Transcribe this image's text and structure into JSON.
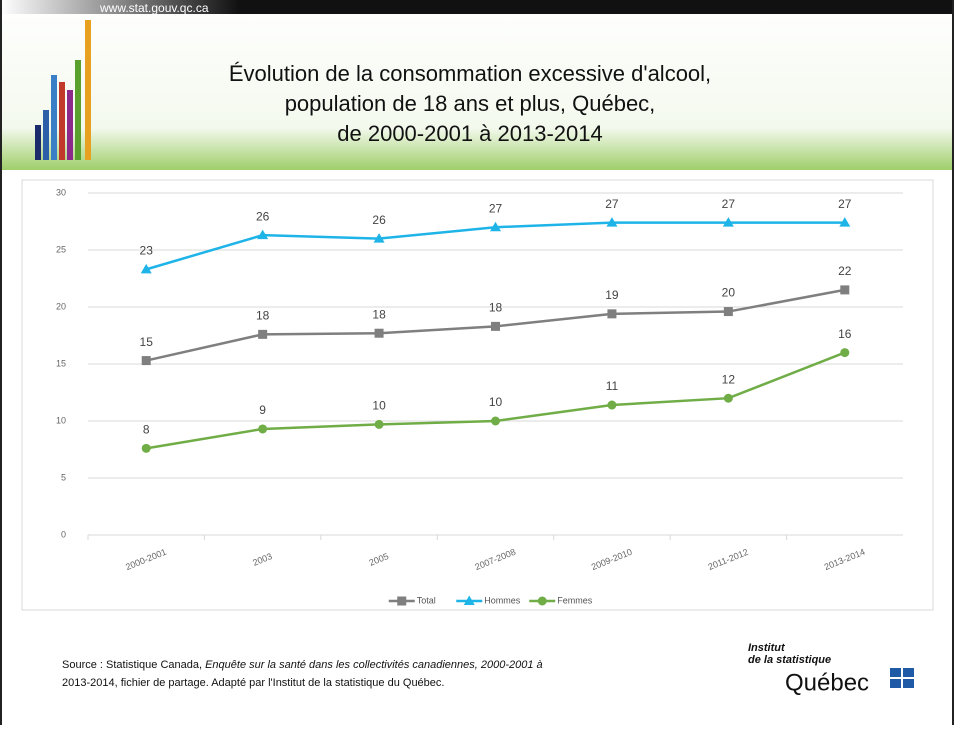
{
  "header": {
    "url": "www.stat.gouv.qc.ca",
    "title": [
      "Évolution de la consommation excessive d'alcool,",
      "population de 18 ans et plus, Québec,",
      "de 2000-2001 à 2013-2014"
    ]
  },
  "chart_data": {
    "type": "line",
    "categories": [
      "2000-2001",
      "2003",
      "2005",
      "2007-2008",
      "2009-2010",
      "2011-2012",
      "2013-2014"
    ],
    "series": [
      {
        "name": "Total",
        "color": "#7f7f7f",
        "marker": "square",
        "values": [
          15.3,
          17.6,
          17.7,
          18.3,
          19.4,
          19.6,
          21.5
        ],
        "value_labels": [
          "15",
          "18",
          "18",
          "18",
          "19",
          "20",
          "22"
        ]
      },
      {
        "name": "Hommes",
        "color": "#1fb4e8",
        "marker": "triangle",
        "values": [
          23.3,
          26.3,
          26.0,
          27.0,
          27.4,
          27.4,
          27.4
        ],
        "value_labels": [
          "23",
          "26",
          "26",
          "27",
          "27",
          "27",
          "27"
        ]
      },
      {
        "name": "Femmes",
        "color": "#70ad47",
        "marker": "circle",
        "values": [
          7.6,
          9.3,
          9.7,
          10.0,
          11.4,
          12.0,
          16.0
        ],
        "value_labels": [
          "8",
          "9",
          "10",
          "10",
          "11",
          "12",
          "16"
        ]
      }
    ],
    "ylim": [
      0,
      30
    ],
    "yticks": [
      0,
      5,
      10,
      15,
      20,
      25,
      30
    ],
    "grid": true,
    "legend": "bottom"
  },
  "footer": {
    "source": [
      "Source : Statistique Canada, ",
      "Enquête sur la santé dans les collectivités canadiennes, 2000-2001 à",
      "2013-2014, fichier de partage. Adapté par l'Institut de la statistique du Québec."
    ],
    "logo": [
      "Institut",
      "de la statistique",
      "Québec"
    ]
  }
}
